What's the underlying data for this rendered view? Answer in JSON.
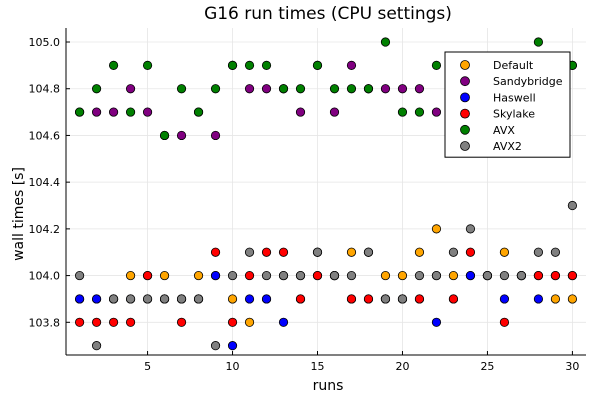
{
  "chart_data": {
    "type": "scatter",
    "title": "G16 run times (CPU settings)",
    "xlabel": "runs",
    "ylabel": "wall times [s]",
    "xlim": [
      0.2,
      30.8
    ],
    "ylim": [
      103.66,
      105.06
    ],
    "x_ticks": [
      5,
      10,
      15,
      20,
      25,
      30
    ],
    "y_ticks": [
      103.8,
      104.0,
      104.2,
      104.4,
      104.6,
      104.8,
      105.0
    ],
    "grid": true,
    "legend_position": "top-right",
    "series": [
      {
        "name": "Default",
        "color": "#ffa500",
        "x": [
          1,
          2,
          3,
          4,
          5,
          6,
          7,
          8,
          9,
          10,
          11,
          12,
          13,
          14,
          15,
          16,
          17,
          18,
          19,
          20,
          21,
          22,
          23,
          24,
          25,
          26,
          27,
          28,
          29,
          30
        ],
        "y": [
          103.9,
          103.9,
          103.9,
          104.0,
          104.0,
          104.0,
          103.9,
          104.0,
          104.0,
          103.9,
          103.8,
          103.9,
          104.0,
          104.0,
          104.1,
          104.0,
          104.1,
          104.1,
          104.0,
          104.0,
          104.1,
          104.2,
          104.0,
          104.0,
          104.0,
          104.1,
          104.0,
          104.0,
          103.9,
          103.9
        ]
      },
      {
        "name": "Sandybridge",
        "color": "#800080",
        "x": [
          1,
          2,
          3,
          4,
          5,
          6,
          7,
          8,
          9,
          10,
          11,
          12,
          13,
          14,
          15,
          16,
          17,
          18,
          19,
          20,
          21,
          22,
          23,
          24,
          25,
          26,
          27,
          28,
          29,
          30
        ],
        "y": [
          104.7,
          104.7,
          104.7,
          104.8,
          104.7,
          104.6,
          104.6,
          104.7,
          104.6,
          104.9,
          104.8,
          104.8,
          104.8,
          104.7,
          104.9,
          104.7,
          104.9,
          104.8,
          104.8,
          104.8,
          104.8,
          104.7,
          104.8,
          104.9,
          104.8,
          104.8,
          104.7,
          104.8,
          104.9,
          104.9
        ]
      },
      {
        "name": "Haswell",
        "color": "#0000ff",
        "x": [
          1,
          2,
          3,
          4,
          5,
          6,
          7,
          8,
          9,
          10,
          11,
          12,
          13,
          14,
          15,
          16,
          17,
          18,
          19,
          20,
          21,
          22,
          23,
          24,
          25,
          26,
          27,
          28,
          29,
          30
        ],
        "y": [
          103.9,
          103.9,
          103.9,
          103.9,
          103.9,
          103.9,
          103.9,
          103.9,
          104.0,
          103.7,
          103.9,
          103.9,
          103.8,
          103.9,
          104.0,
          104.0,
          103.9,
          103.9,
          103.9,
          103.9,
          103.9,
          103.8,
          103.9,
          104.0,
          104.0,
          103.9,
          104.0,
          103.9,
          104.0,
          104.0
        ]
      },
      {
        "name": "Skylake",
        "color": "#ff0000",
        "x": [
          1,
          2,
          3,
          4,
          5,
          6,
          7,
          8,
          9,
          10,
          11,
          12,
          13,
          14,
          15,
          16,
          17,
          18,
          19,
          20,
          21,
          22,
          23,
          24,
          25,
          26,
          27,
          28,
          29,
          30
        ],
        "y": [
          103.8,
          103.8,
          103.8,
          103.8,
          104.0,
          103.9,
          103.8,
          103.9,
          104.1,
          103.8,
          104.0,
          104.1,
          104.1,
          103.9,
          104.0,
          104.0,
          103.9,
          103.9,
          103.9,
          103.9,
          103.9,
          104.0,
          103.9,
          104.1,
          104.0,
          103.8,
          104.0,
          104.0,
          104.0,
          104.0
        ]
      },
      {
        "name": "AVX",
        "color": "#008000",
        "x": [
          1,
          2,
          3,
          4,
          5,
          6,
          7,
          8,
          9,
          10,
          11,
          12,
          13,
          14,
          15,
          16,
          17,
          18,
          19,
          20,
          21,
          22,
          23,
          24,
          25,
          26,
          27,
          28,
          29,
          30
        ],
        "y": [
          104.7,
          104.8,
          104.9,
          104.7,
          104.9,
          104.6,
          104.8,
          104.7,
          104.8,
          104.9,
          104.9,
          104.9,
          104.8,
          104.8,
          104.9,
          104.8,
          104.8,
          104.8,
          105.0,
          104.7,
          104.7,
          104.9,
          104.8,
          104.8,
          104.8,
          104.8,
          104.7,
          105.0,
          104.7,
          104.9
        ]
      },
      {
        "name": "AVX2",
        "color": "#808080",
        "x": [
          1,
          2,
          3,
          4,
          5,
          6,
          7,
          8,
          9,
          10,
          11,
          12,
          13,
          14,
          15,
          16,
          17,
          18,
          19,
          20,
          21,
          22,
          23,
          24,
          25,
          26,
          27,
          28,
          29,
          30
        ],
        "y": [
          104.0,
          103.7,
          103.9,
          103.9,
          103.9,
          103.9,
          103.9,
          103.9,
          103.7,
          104.0,
          104.1,
          104.0,
          104.0,
          104.0,
          104.1,
          104.0,
          104.0,
          104.1,
          103.9,
          103.9,
          104.0,
          104.0,
          104.1,
          104.2,
          104.0,
          104.0,
          104.0,
          104.1,
          104.1,
          104.3
        ]
      }
    ]
  }
}
